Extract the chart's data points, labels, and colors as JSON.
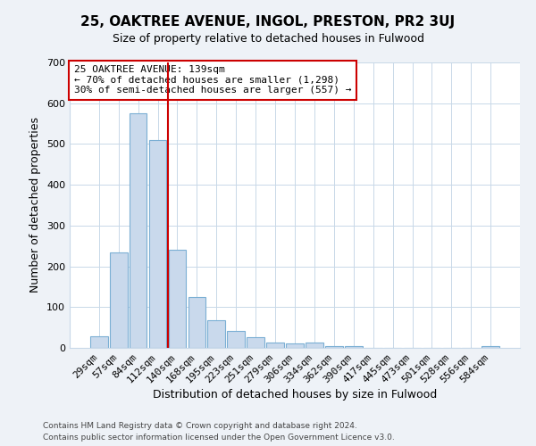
{
  "title": "25, OAKTREE AVENUE, INGOL, PRESTON, PR2 3UJ",
  "subtitle": "Size of property relative to detached houses in Fulwood",
  "xlabel": "Distribution of detached houses by size in Fulwood",
  "ylabel": "Number of detached properties",
  "bar_labels": [
    "29sqm",
    "57sqm",
    "84sqm",
    "112sqm",
    "140sqm",
    "168sqm",
    "195sqm",
    "223sqm",
    "251sqm",
    "279sqm",
    "306sqm",
    "334sqm",
    "362sqm",
    "390sqm",
    "417sqm",
    "445sqm",
    "473sqm",
    "501sqm",
    "528sqm",
    "556sqm",
    "584sqm"
  ],
  "bar_values": [
    28,
    233,
    575,
    510,
    240,
    125,
    67,
    42,
    27,
    14,
    10,
    13,
    4,
    4,
    1,
    1,
    0,
    0,
    0,
    0,
    5
  ],
  "bar_color": "#c9d9ec",
  "bar_edgecolor": "#7bafd4",
  "vline_color": "#cc0000",
  "vline_index": 3.5,
  "annotation_title": "25 OAKTREE AVENUE: 139sqm",
  "annotation_line1": "← 70% of detached houses are smaller (1,298)",
  "annotation_line2": "30% of semi-detached houses are larger (557) →",
  "annotation_box_edgecolor": "#cc0000",
  "ylim": [
    0,
    700
  ],
  "yticks": [
    0,
    100,
    200,
    300,
    400,
    500,
    600,
    700
  ],
  "footer1": "Contains HM Land Registry data © Crown copyright and database right 2024.",
  "footer2": "Contains public sector information licensed under the Open Government Licence v3.0.",
  "bg_color": "#eef2f7",
  "plot_bg_color": "#ffffff"
}
